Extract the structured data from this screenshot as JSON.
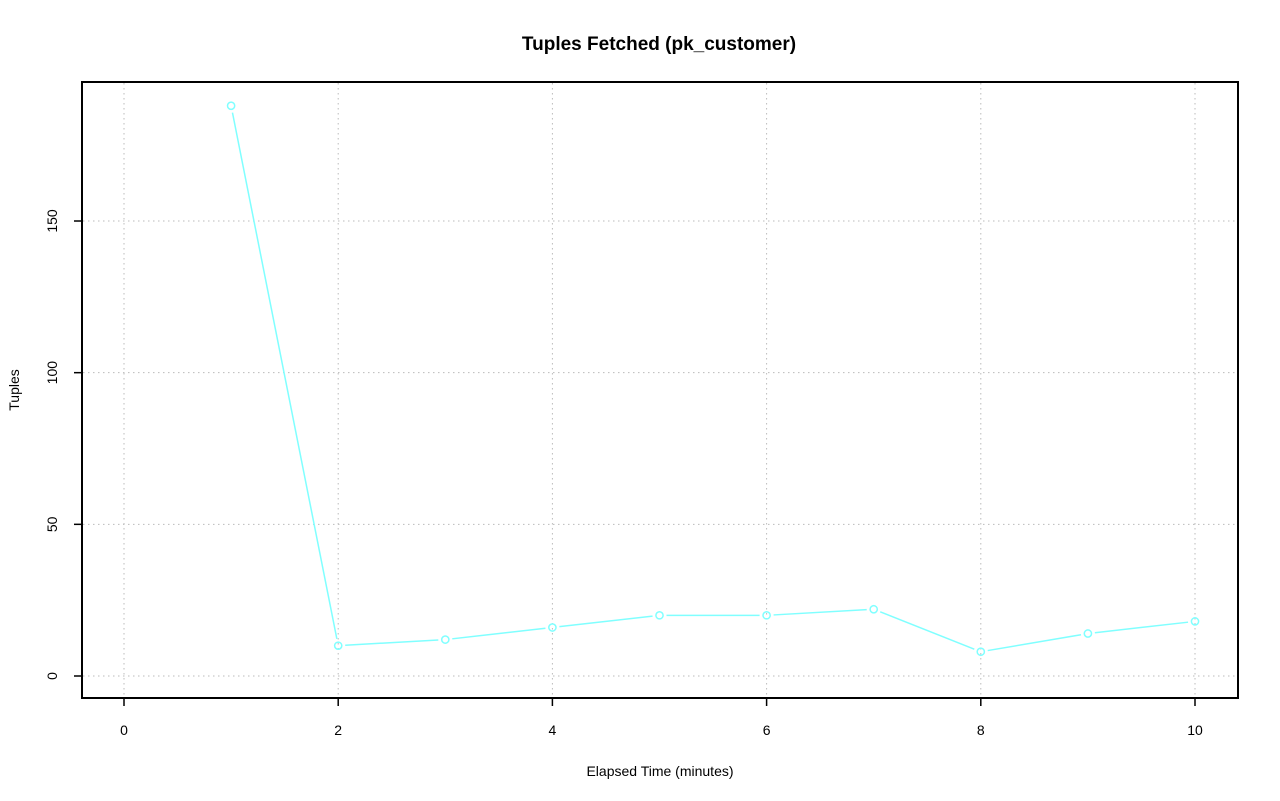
{
  "chart_data": {
    "type": "line",
    "title": "Tuples Fetched (pk_customer)",
    "xlabel": "Elapsed Time (minutes)",
    "ylabel": "Tuples",
    "x": [
      1,
      2,
      3,
      4,
      5,
      6,
      7,
      8,
      9,
      10
    ],
    "series": [
      {
        "values": [
          188,
          10,
          12,
          16,
          20,
          20,
          22,
          8,
          14,
          18
        ],
        "color": "#80FFFF"
      }
    ],
    "xlim": [
      -0.4,
      10.4
    ],
    "ylim": [
      -7.5,
      195
    ],
    "xticks": [
      "0",
      "2",
      "4",
      "6",
      "8",
      "10"
    ],
    "yticks": [
      "0",
      "50",
      "100",
      "150"
    ],
    "grid": true,
    "legend": "none"
  }
}
